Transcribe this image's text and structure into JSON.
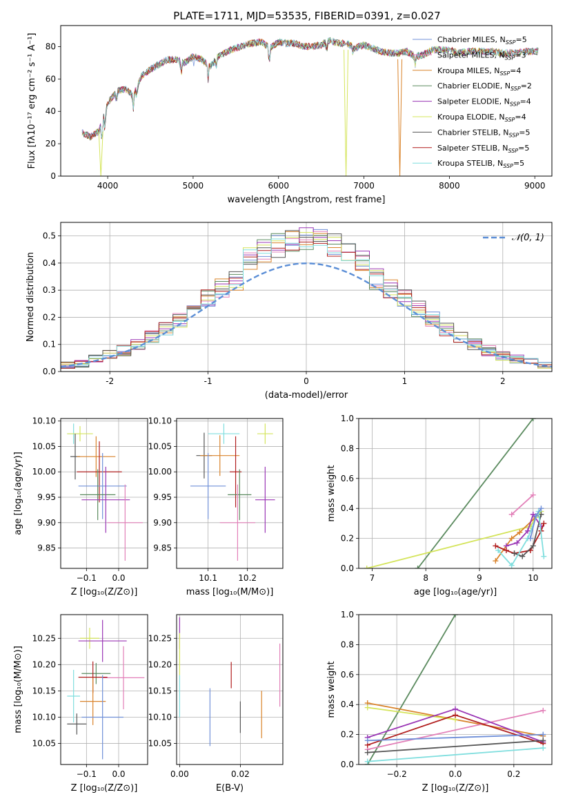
{
  "figure_title": "PLATE=1711, MJD=53535, FIBERID=0391, z=0.027",
  "colors": {
    "Chabrier MILES": "#6f8fd8",
    "Salpeter MILES": "#e27fb8",
    "Kroupa MILES": "#d9832a",
    "Chabrier ELODIE": "#5a8a5e",
    "Salpeter ELODIE": "#9a35b5",
    "Kroupa ELODIE": "#d4e45a",
    "Chabrier STELIB": "#555555",
    "Salpeter STELIB": "#b01c1c",
    "Kroupa STELIB": "#7fdede",
    "normal": "#5b8ed6"
  },
  "legend_spectrum": [
    {
      "name": "Chabrier MILES",
      "nssp": "5"
    },
    {
      "name": "Salpeter MILES",
      "nssp": "3"
    },
    {
      "name": "Kroupa MILES",
      "nssp": "4"
    },
    {
      "name": "Chabrier ELODIE",
      "nssp": "2"
    },
    {
      "name": "Salpeter ELODIE",
      "nssp": "4"
    },
    {
      "name": "Kroupa ELODIE",
      "nssp": "4"
    },
    {
      "name": "Chabrier STELIB",
      "nssp": "5"
    },
    {
      "name": "Salpeter STELIB",
      "nssp": "5"
    },
    {
      "name": "Kroupa STELIB",
      "nssp": "5"
    }
  ],
  "legend_nssp_prefix": ", N",
  "legend_nssp_sub": "SSP",
  "legend_nssp_eq": "=",
  "legend_normal": " 𝒩(0, 1)",
  "chart_data": [
    {
      "id": "spectrum",
      "type": "line",
      "xlabel": "wavelength [Angstrom, rest frame]",
      "ylabel": "Flux [fλ10⁻¹⁷ erg cm⁻² s⁻¹ A⁻¹]",
      "xlim": [
        3450,
        9200
      ],
      "ylim": [
        0,
        93
      ],
      "xticks": [
        4000,
        5000,
        6000,
        7000,
        8000,
        9000
      ],
      "yticks": [
        0,
        20,
        40,
        60,
        80
      ],
      "continuum": [
        [
          3700,
          27
        ],
        [
          3800,
          24
        ],
        [
          3900,
          28
        ],
        [
          4000,
          45
        ],
        [
          4100,
          52
        ],
        [
          4200,
          54
        ],
        [
          4300,
          50
        ],
        [
          4400,
          62
        ],
        [
          4500,
          66
        ],
        [
          4600,
          69
        ],
        [
          4700,
          72
        ],
        [
          4800,
          72
        ],
        [
          4900,
          70
        ],
        [
          5000,
          74
        ],
        [
          5100,
          72
        ],
        [
          5200,
          68
        ],
        [
          5300,
          74
        ],
        [
          5400,
          77
        ],
        [
          5500,
          79
        ],
        [
          5600,
          81
        ],
        [
          5700,
          82
        ],
        [
          5800,
          83
        ],
        [
          5900,
          79
        ],
        [
          6000,
          83
        ],
        [
          6100,
          82
        ],
        [
          6200,
          82
        ],
        [
          6300,
          80
        ],
        [
          6400,
          80
        ],
        [
          6500,
          81
        ],
        [
          6600,
          84
        ],
        [
          6700,
          82
        ],
        [
          6800,
          82
        ],
        [
          6900,
          79
        ],
        [
          7000,
          81
        ],
        [
          7100,
          79
        ],
        [
          7200,
          77
        ],
        [
          7300,
          76
        ],
        [
          7400,
          76
        ],
        [
          7500,
          77
        ],
        [
          7600,
          74
        ],
        [
          7700,
          75
        ],
        [
          7800,
          78
        ],
        [
          7900,
          78
        ],
        [
          8000,
          78
        ],
        [
          8100,
          76
        ],
        [
          8200,
          77
        ],
        [
          8300,
          77
        ],
        [
          8400,
          77
        ],
        [
          8500,
          77
        ],
        [
          8600,
          76
        ],
        [
          8700,
          76
        ],
        [
          8800,
          76
        ],
        [
          8900,
          77
        ],
        [
          9000,
          77
        ],
        [
          9050,
          77
        ]
      ],
      "dropouts": [
        {
          "x": 3920,
          "series": "Kroupa ELODIE"
        },
        {
          "x": 6790,
          "series": "Kroupa ELODIE"
        },
        {
          "x": 7420,
          "series": "Kroupa MILES"
        }
      ]
    },
    {
      "id": "residuals",
      "type": "histogram",
      "xlabel": "(data-model)/error",
      "ylabel": "Normed distribution",
      "xlim": [
        -2.5,
        2.5
      ],
      "ylim": [
        0,
        0.55
      ],
      "xticks": [
        -2,
        -1,
        0,
        1,
        2
      ],
      "yticks": [
        0.0,
        0.1,
        0.2,
        0.3,
        0.4,
        0.5
      ],
      "bins": [
        -2.5,
        2.5,
        35
      ],
      "normal_curve": {
        "mu": 0,
        "sigma": 1
      }
    },
    {
      "id": "age_vs_Z",
      "type": "errorbar",
      "xlabel": "Z [log₁₀(Z/Z⊙)]",
      "ylabel": "age  [log₁₀(age/yr)]",
      "xlim": [
        -0.18,
        0.09
      ],
      "ylim": [
        9.81,
        10.105
      ],
      "xticks": [
        -0.1,
        0.0
      ],
      "xticklabels": [
        "−0.1",
        "0.0"
      ],
      "yticks": [
        9.85,
        9.9,
        9.95,
        10.0,
        10.05,
        10.1
      ],
      "points": [
        {
          "series": "Kroupa STELIB",
          "x": -0.14,
          "y": 10.075,
          "xerr": 0.02,
          "yerr": 0.02
        },
        {
          "series": "Kroupa ELODIE",
          "x": -0.12,
          "y": 10.075,
          "xerr": 0.04,
          "yerr": 0.015
        },
        {
          "series": "Chabrier STELIB",
          "x": -0.135,
          "y": 10.03,
          "xerr": 0.015,
          "yerr": 0.045
        },
        {
          "series": "Kroupa MILES",
          "x": -0.07,
          "y": 10.03,
          "xerr": 0.06,
          "yerr": 0.04
        },
        {
          "series": "Salpeter STELIB",
          "x": -0.06,
          "y": 10.0,
          "xerr": 0.07,
          "yerr": 0.06
        },
        {
          "series": "Chabrier MILES",
          "x": -0.05,
          "y": 9.972,
          "xerr": 0.075,
          "yerr": 0.065
        },
        {
          "series": "Chabrier ELODIE",
          "x": -0.065,
          "y": 9.955,
          "xerr": 0.055,
          "yerr": 0.05
        },
        {
          "series": "Salpeter ELODIE",
          "x": -0.04,
          "y": 9.945,
          "xerr": 0.075,
          "yerr": 0.065
        },
        {
          "series": "Salpeter MILES",
          "x": 0.02,
          "y": 9.9,
          "xerr": 0.055,
          "yerr": 0.075
        }
      ]
    },
    {
      "id": "age_vs_mass",
      "type": "errorbar",
      "xlabel": "mass [log₁₀(M/M⊙)]",
      "ylabel": "",
      "xlim": [
        10.02,
        10.29
      ],
      "ylim": [
        9.81,
        10.105
      ],
      "xticks": [
        10.1,
        10.2
      ],
      "yticks": [
        9.85,
        9.9,
        9.95,
        10.0,
        10.05,
        10.1
      ],
      "points": [
        {
          "series": "Kroupa STELIB",
          "x": 10.14,
          "y": 10.075,
          "xerr": 0.04,
          "yerr": 0.02
        },
        {
          "series": "Kroupa ELODIE",
          "x": 10.245,
          "y": 10.075,
          "xerr": 0.02,
          "yerr": 0.02
        },
        {
          "series": "Chabrier STELIB",
          "x": 10.09,
          "y": 10.032,
          "xerr": 0.02,
          "yerr": 0.045
        },
        {
          "series": "Kroupa MILES",
          "x": 10.13,
          "y": 10.032,
          "xerr": 0.05,
          "yerr": 0.04
        },
        {
          "series": "Salpeter STELIB",
          "x": 10.17,
          "y": 10.0,
          "xerr": 0.015,
          "yerr": 0.07
        },
        {
          "series": "Chabrier MILES",
          "x": 10.1,
          "y": 9.972,
          "xerr": 0.045,
          "yerr": 0.065
        },
        {
          "series": "Chabrier ELODIE",
          "x": 10.18,
          "y": 9.955,
          "xerr": 0.03,
          "yerr": 0.05
        },
        {
          "series": "Salpeter ELODIE",
          "x": 10.245,
          "y": 9.945,
          "xerr": 0.025,
          "yerr": 0.065
        },
        {
          "series": "Salpeter MILES",
          "x": 10.175,
          "y": 9.9,
          "xerr": 0.045,
          "yerr": 0.075
        }
      ]
    },
    {
      "id": "weight_vs_age",
      "type": "line",
      "xlabel": "age  [log₁₀(age/yr)]",
      "ylabel": "mass weight",
      "xlim": [
        6.75,
        10.35
      ],
      "ylim": [
        0,
        1.0
      ],
      "xticks": [
        7,
        8,
        9,
        10
      ],
      "yticks": [
        0.0,
        0.2,
        0.4,
        0.6,
        0.8,
        1.0
      ],
      "series": [
        {
          "name": "Chabrier ELODIE",
          "x": [
            7.85,
            10.0
          ],
          "y": [
            0.0,
            1.0
          ]
        },
        {
          "name": "Kroupa ELODIE",
          "x": [
            6.9,
            9.95,
            10.05,
            10.15
          ],
          "y": [
            0.0,
            0.28,
            0.34,
            0.38
          ]
        },
        {
          "name": "Salpeter MILES",
          "x": [
            9.6,
            10.0
          ],
          "y": [
            0.36,
            0.49
          ]
        },
        {
          "name": "Kroupa MILES",
          "x": [
            9.3,
            9.6,
            9.75,
            10.1
          ],
          "y": [
            0.05,
            0.2,
            0.24,
            0.36
          ]
        },
        {
          "name": "Salpeter ELODIE",
          "x": [
            9.5,
            9.7,
            9.9,
            10.0,
            10.15
          ],
          "y": [
            0.15,
            0.17,
            0.25,
            0.36,
            0.28
          ]
        },
        {
          "name": "Salpeter STELIB",
          "x": [
            9.3,
            9.5,
            9.65,
            9.95,
            10.15,
            10.2
          ],
          "y": [
            0.15,
            0.12,
            0.1,
            0.12,
            0.25,
            0.3
          ]
        },
        {
          "name": "Chabrier STELIB",
          "x": [
            9.65,
            9.8,
            10.0,
            10.15
          ],
          "y": [
            0.1,
            0.08,
            0.15,
            0.36
          ]
        },
        {
          "name": "Kroupa STELIB",
          "x": [
            9.35,
            9.6,
            9.9,
            10.1,
            10.2
          ],
          "y": [
            0.12,
            0.02,
            0.2,
            0.38,
            0.08
          ]
        },
        {
          "name": "Chabrier MILES",
          "x": [
            9.95,
            10.05,
            10.15
          ],
          "y": [
            0.2,
            0.35,
            0.4
          ]
        }
      ]
    },
    {
      "id": "mass_vs_Z",
      "type": "errorbar",
      "xlabel": "Z [log₁₀(Z/Z⊙)]",
      "ylabel": "mass [log₁₀(M/M⊙)]",
      "xlim": [
        -0.18,
        0.09
      ],
      "ylim": [
        10.01,
        10.295
      ],
      "xticks": [
        -0.1,
        0.0
      ],
      "xticklabels": [
        "−0.1",
        "0.0"
      ],
      "yticks": [
        10.05,
        10.1,
        10.15,
        10.2,
        10.25
      ],
      "points": [
        {
          "series": "Kroupa ELODIE",
          "x": -0.09,
          "y": 10.25,
          "xerr": 0.03,
          "yerr": 0.02
        },
        {
          "series": "Salpeter ELODIE",
          "x": -0.05,
          "y": 10.245,
          "xerr": 0.075,
          "yerr": 0.04
        },
        {
          "series": "Salpeter MILES",
          "x": 0.015,
          "y": 10.175,
          "xerr": 0.065,
          "yerr": 0.06
        },
        {
          "series": "Chabrier ELODIE",
          "x": -0.07,
          "y": 10.183,
          "xerr": 0.045,
          "yerr": 0.02
        },
        {
          "series": "Salpeter STELIB",
          "x": -0.08,
          "y": 10.176,
          "xerr": 0.045,
          "yerr": 0.03
        },
        {
          "series": "Kroupa STELIB",
          "x": -0.14,
          "y": 10.14,
          "xerr": 0.02,
          "yerr": 0.05
        },
        {
          "series": "Kroupa MILES",
          "x": -0.08,
          "y": 10.13,
          "xerr": 0.04,
          "yerr": 0.045
        },
        {
          "series": "Chabrier MILES",
          "x": -0.05,
          "y": 10.1,
          "xerr": 0.065,
          "yerr": 0.08
        },
        {
          "series": "Chabrier STELIB",
          "x": -0.13,
          "y": 10.087,
          "xerr": 0.03,
          "yerr": 0.02
        }
      ]
    },
    {
      "id": "mass_vs_EBV",
      "type": "errorbar",
      "xlabel": "E(B-V)",
      "ylabel": "",
      "xlim": [
        -0.001,
        0.034
      ],
      "ylim": [
        10.01,
        10.295
      ],
      "xticks": [
        0.0,
        0.02
      ],
      "xticklabels": [
        "0.00",
        "0.02"
      ],
      "yticks": [
        10.05,
        10.1,
        10.15,
        10.2,
        10.25
      ],
      "points": [
        {
          "series": "Salpeter ELODIE",
          "x": 0.0,
          "y": 10.26,
          "xerr": 0,
          "yerr": 0.03
        },
        {
          "series": "Kroupa ELODIE",
          "x": 0.0,
          "y": 10.22,
          "xerr": 0,
          "yerr": 0.04
        },
        {
          "series": "Kroupa STELIB",
          "x": 0.0,
          "y": 10.14,
          "xerr": 0,
          "yerr": 0.04
        },
        {
          "series": "Chabrier MILES",
          "x": 0.01,
          "y": 10.1,
          "xerr": 0,
          "yerr": 0.055
        },
        {
          "series": "Salpeter STELIB",
          "x": 0.017,
          "y": 10.18,
          "xerr": 0,
          "yerr": 0.025
        },
        {
          "series": "Chabrier STELIB",
          "x": 0.02,
          "y": 10.1,
          "xerr": 0,
          "yerr": 0.03
        },
        {
          "series": "Kroupa MILES",
          "x": 0.027,
          "y": 10.105,
          "xerr": 0,
          "yerr": 0.045
        },
        {
          "series": "Salpeter MILES",
          "x": 0.033,
          "y": 10.18,
          "xerr": 0,
          "yerr": 0.06
        }
      ]
    },
    {
      "id": "weight_vs_Z",
      "type": "line",
      "xlabel": "Z [log₁₀(Z/Z⊙)]",
      "ylabel": "mass weight",
      "xlim": [
        -0.33,
        0.33
      ],
      "ylim": [
        0,
        1.0
      ],
      "xticks": [
        -0.2,
        0.0,
        0.2
      ],
      "xticklabels": [
        "−0.2",
        "0.0",
        "0.2"
      ],
      "yticks": [
        0.0,
        0.2,
        0.4,
        0.6,
        0.8,
        1.0
      ],
      "series": [
        {
          "name": "Chabrier ELODIE",
          "x": [
            -0.3,
            0.0
          ],
          "y": [
            0.0,
            1.0
          ]
        },
        {
          "name": "Kroupa MILES",
          "x": [
            -0.3,
            0.3
          ],
          "y": [
            0.41,
            0.19
          ]
        },
        {
          "name": "Kroupa ELODIE",
          "x": [
            -0.3,
            0.0
          ],
          "y": [
            0.38,
            0.3
          ]
        },
        {
          "name": "Salpeter MILES",
          "x": [
            -0.3,
            0.3
          ],
          "y": [
            0.1,
            0.36
          ]
        },
        {
          "name": "Salpeter ELODIE",
          "x": [
            -0.3,
            0.0,
            0.3
          ],
          "y": [
            0.18,
            0.37,
            0.15
          ]
        },
        {
          "name": "Salpeter STELIB",
          "x": [
            -0.3,
            0.0,
            0.3
          ],
          "y": [
            0.13,
            0.33,
            0.14
          ]
        },
        {
          "name": "Chabrier MILES",
          "x": [
            -0.3,
            0.3
          ],
          "y": [
            0.16,
            0.2
          ]
        },
        {
          "name": "Chabrier STELIB",
          "x": [
            -0.3,
            0.3
          ],
          "y": [
            0.08,
            0.16
          ]
        },
        {
          "name": "Kroupa STELIB",
          "x": [
            -0.3,
            0.3
          ],
          "y": [
            0.02,
            0.11
          ]
        }
      ]
    }
  ]
}
